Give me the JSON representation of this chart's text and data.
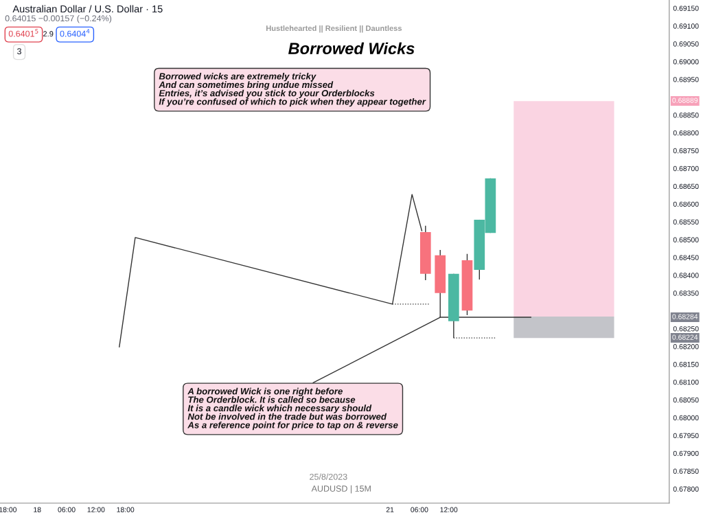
{
  "chart_data": {
    "type": "candlestick",
    "title": "Borrowed Wicks",
    "subtitle": "Hustlehearted || Resilient || Dauntless",
    "x": [
      "2023-08-21T07:15",
      "2023-08-21T10:15",
      "2023-08-21T13:00",
      "2023-08-21T15:45",
      "2023-08-21T18:15",
      "2023-08-21T20:30"
    ],
    "ohlc": [
      [
        0.68521,
        0.68539,
        0.68386,
        0.68404
      ],
      [
        0.68456,
        0.68471,
        0.68282,
        0.6835
      ],
      [
        0.68271,
        0.68404,
        0.68224,
        0.68404
      ],
      [
        0.68442,
        0.6846,
        0.68288,
        0.68301
      ],
      [
        0.68415,
        0.68556,
        0.68388,
        0.68556
      ],
      [
        0.68519,
        0.68672,
        0.68519,
        0.68672
      ]
    ],
    "colors": [
      "#f7727d",
      "#f7727d",
      "#4cb8a2",
      "#f7727d",
      "#4cb8a2",
      "#4cb8a2"
    ],
    "series": [
      {
        "type": "bar",
        "x": [
          "2023-08-22T11:30",
          "2023-08-22T11:30"
        ],
        "base": [
          0.68284,
          0.68224
        ],
        "values": [
          0.00605,
          0.0006
        ],
        "colors": [
          "#fad4e2",
          "#c3c4c9"
        ]
      },
      {
        "type": "line",
        "x": [
          "2023-08-18T16:45",
          "2023-08-18T20:00",
          "2023-08-21T00:30",
          "2023-08-21T04:30",
          "2023-08-21T06:30"
        ],
        "values": [
          0.68199,
          0.68506,
          0.68319,
          0.68627,
          0.68525
        ],
        "color": "#333333",
        "line_style": "solid"
      },
      {
        "type": "line",
        "x": [
          "2023-08-21T00:30",
          "2023-08-21T08:00"
        ],
        "values": [
          0.68319,
          0.68319
        ],
        "color": "#333333",
        "line_style": "dotted"
      },
      {
        "type": "line",
        "x": [
          "2023-08-21T13:00",
          "2023-08-21T21:30"
        ],
        "values": [
          0.68224,
          0.68224
        ],
        "color": "#333333",
        "line_style": "dotted"
      },
      {
        "type": "line",
        "x": [
          "2023-08-21T10:15",
          "2023-08-22T04:45"
        ],
        "values": [
          0.68282,
          0.68282
        ],
        "color": "#333333",
        "line_style": "solid"
      }
    ],
    "annotations": [
      "Australian Dollar / U.S. Dollar · 15",
      "0.64015 −0.00157 (−0.24%)",
      "0.6401$^{5}$",
      "2.9",
      "0.6404$^{4}$",
      "3",
      "Borrowed wicks are extremely tricky\nAnd can sometimes bring undue missed\nEntries, it’s advised you stick to your Orderblocks\nIf you’re confused of which to pick when they appear together",
      {
        "text": "A borrowed Wick is one right before\nThe Orderblock. It is called so because\nIt is a candle wick which necessary should\nNot be involved in the trade but was borrowed\nAs a reference point for price to tap on & reverse",
        "x": "2023-08-21T10:15",
        "y": 0.68282
      },
      "25/8/2023",
      "AUDUSD | 15M",
      "0.68889",
      "0.68284",
      "0.68224"
    ],
    "xlim": [
      "2023-08-17T16:24",
      "2023-08-23T09:00"
    ],
    "ylim": [
      0.6776,
      0.69173
    ],
    "xticks": [
      {
        "value": "2023-08-17T18:00",
        "label": "18:00"
      },
      {
        "value": "2023-08-18",
        "label": "18"
      },
      {
        "value": "2023-08-18T06:00",
        "label": "06:00"
      },
      {
        "value": "2023-08-18T12:00",
        "label": "12:00"
      },
      {
        "value": "2023-08-18T18:00",
        "label": "18:00"
      },
      {
        "value": "2023-08-21",
        "label": "21"
      },
      {
        "value": "2023-08-21T06:00",
        "label": "06:00"
      },
      {
        "value": "2023-08-21T12:00",
        "label": "12:00"
      }
    ],
    "yticks": [
      {
        "value": 0.678,
        "label": "0.67800"
      },
      {
        "value": 0.6785,
        "label": "0.67850"
      },
      {
        "value": 0.679,
        "label": "0.67900"
      },
      {
        "value": 0.6795,
        "label": "0.67950"
      },
      {
        "value": 0.68,
        "label": "0.68000"
      },
      {
        "value": 0.6805,
        "label": "0.68050"
      },
      {
        "value": 0.681,
        "label": "0.68100"
      },
      {
        "value": 0.6815,
        "label": "0.68150"
      },
      {
        "value": 0.682,
        "label": "0.68200"
      },
      {
        "value": 0.6825,
        "label": "0.68250"
      },
      {
        "value": 0.6835,
        "label": "0.68350"
      },
      {
        "value": 0.684,
        "label": "0.68400"
      },
      {
        "value": 0.6845,
        "label": "0.68450"
      },
      {
        "value": 0.685,
        "label": "0.68500"
      },
      {
        "value": 0.6855,
        "label": "0.68550"
      },
      {
        "value": 0.686,
        "label": "0.68600"
      },
      {
        "value": 0.6865,
        "label": "0.68650"
      },
      {
        "value": 0.687,
        "label": "0.68700"
      },
      {
        "value": 0.6875,
        "label": "0.68750"
      },
      {
        "value": 0.688,
        "label": "0.68800"
      },
      {
        "value": 0.6885,
        "label": "0.68850"
      },
      {
        "value": 0.6895,
        "label": "0.68950"
      },
      {
        "value": 0.69,
        "label": "0.69000"
      },
      {
        "value": 0.6905,
        "label": "0.69050"
      },
      {
        "value": 0.691,
        "label": "0.69100"
      },
      {
        "value": 0.6915,
        "label": "0.69150"
      }
    ],
    "grid": false,
    "legend": false
  }
}
